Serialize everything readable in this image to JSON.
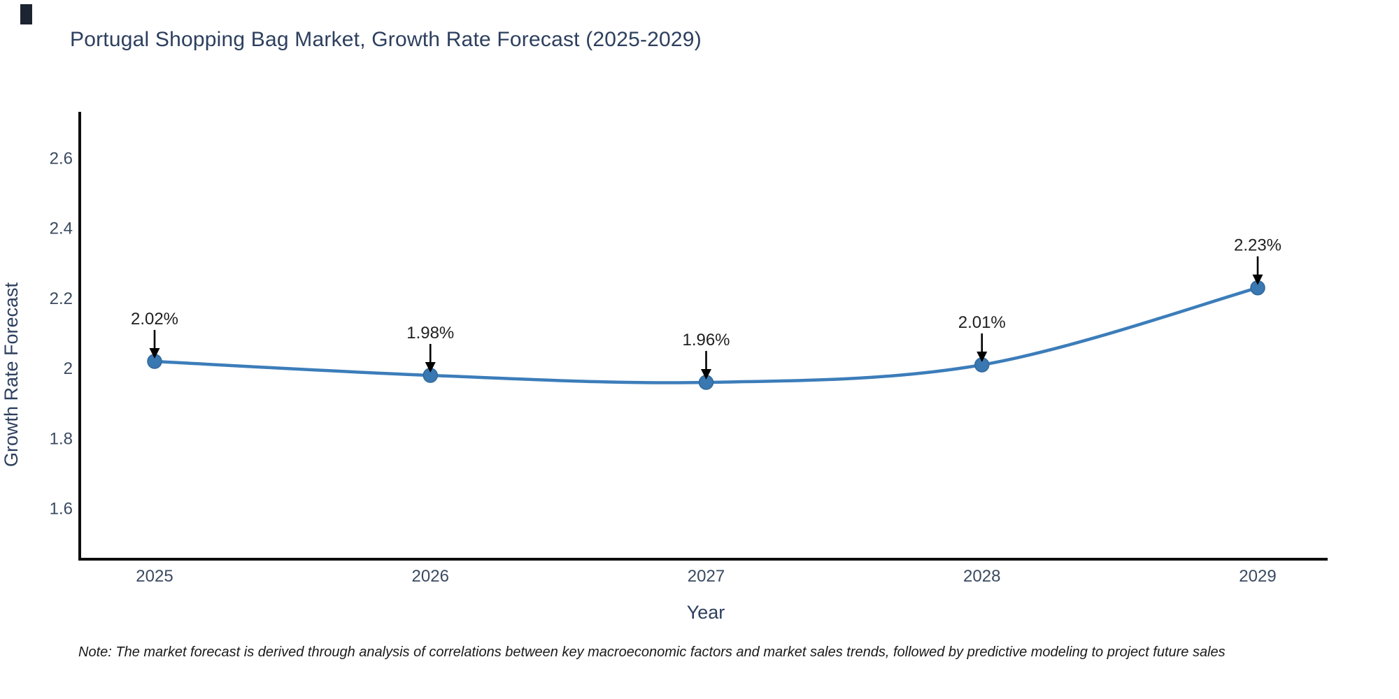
{
  "title": {
    "text": "Portugal Shopping Bag Market, Growth Rate Forecast (2025-2029)"
  },
  "note": {
    "text": "Note: The market forecast is derived through analysis of correlations between key macroeconomic factors and market sales trends, followed by predictive modeling to project future sales"
  },
  "colors": {
    "line": "#3c7dba",
    "marker_fill": "#3a78b2",
    "marker_edge": "#31689a",
    "annotation_text": "#1f1f1f",
    "annotation_arrow": "#000000",
    "axis_spine": "#0d0d0d",
    "tick_label": "#3a4a61",
    "axis_title": "#2d3f5e",
    "title_text": "#2d3f5e"
  },
  "chart_data": {
    "type": "line",
    "title": "Portugal Shopping Bag Market, Growth Rate Forecast (2025-2029)",
    "x": [
      2025,
      2026,
      2027,
      2028,
      2029
    ],
    "x_tick_labels": [
      "2025",
      "2026",
      "2027",
      "2028",
      "2029"
    ],
    "series": [
      {
        "name": "Growth Rate Forecast",
        "values": [
          2.02,
          1.98,
          1.96,
          2.01,
          2.23
        ]
      }
    ],
    "point_labels": [
      "2.02%",
      "1.98%",
      "1.96%",
      "2.01%",
      "2.23%"
    ],
    "xlabel": "Year",
    "ylabel": "Growth Rate Forecast",
    "y_ticks": [
      1.6,
      1.8,
      2,
      2.2,
      2.4,
      2.6
    ],
    "y_tick_labels": [
      "1.6",
      "1.8",
      "2",
      "2.2",
      "2.4",
      "2.6"
    ],
    "ylim": [
      1.455,
      2.73
    ],
    "grid": false,
    "legend_position": "none",
    "annotations": "arrow-down-to-point"
  }
}
